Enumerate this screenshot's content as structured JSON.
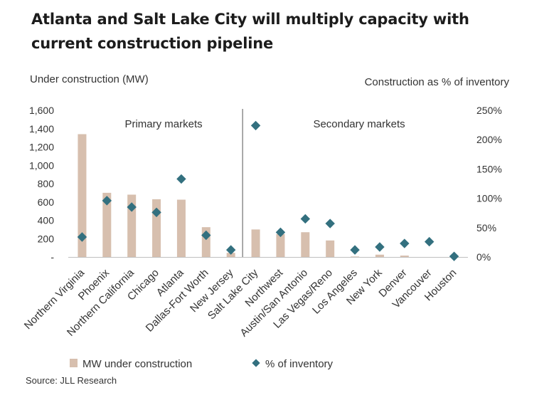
{
  "title": "Atlanta and Salt Lake City will multiply capacity with current construction pipeline",
  "source": "Source: JLL Research",
  "colors": {
    "bar": "#d7bfae",
    "marker": "#33707f",
    "divider": "#555555"
  },
  "chart_data": {
    "type": "bar",
    "categories": [
      "Northern Virginia",
      "Phoenix",
      "Northern California",
      "Chicago",
      "Atlanta",
      "Dallas-Fort Worth",
      "New Jersey",
      "Salt Lake City",
      "Northwest",
      "Austin/San Antonio",
      "Las Vegas/Reno",
      "Los Angeles",
      "New York",
      "Denver",
      "Vancouver",
      "Houston"
    ],
    "series": [
      {
        "name": "MW under construction",
        "type": "bar",
        "axis": "left",
        "values": [
          1340,
          700,
          680,
          630,
          625,
          325,
          45,
          300,
          250,
          270,
          180,
          5,
          25,
          15,
          0,
          0
        ]
      },
      {
        "name": "% of inventory",
        "type": "scatter",
        "marker": "diamond",
        "axis": "right",
        "values": [
          34,
          96,
          85,
          76,
          133,
          37,
          12,
          224,
          42,
          65,
          57,
          12,
          17,
          23,
          26,
          1
        ]
      }
    ],
    "ylabel": "Under construction (MW)",
    "y2label": "Construction as % of inventory",
    "ylim": [
      0,
      1600
    ],
    "y2lim": [
      0,
      250
    ],
    "yticks": [
      "-",
      "200",
      "400",
      "600",
      "800",
      "1,000",
      "1,200",
      "1,400",
      "1,600"
    ],
    "y2ticks": [
      "0%",
      "50%",
      "100%",
      "150%",
      "200%",
      "250%"
    ],
    "groups": [
      {
        "label": "Primary markets",
        "range": [
          0,
          6
        ]
      },
      {
        "label": "Secondary markets",
        "range": [
          7,
          15
        ]
      }
    ],
    "legend": {
      "bar": "MW under construction",
      "marker": "% of inventory",
      "position": "bottom"
    },
    "grid": false
  }
}
